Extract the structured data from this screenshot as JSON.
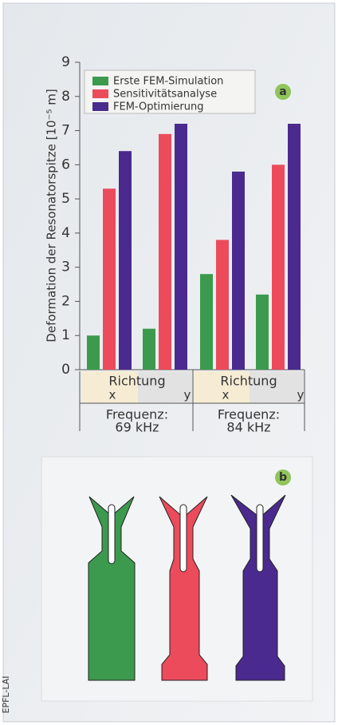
{
  "chart_data": {
    "type": "bar",
    "ylabel": "Deformation der Resonatorspitze [10⁻⁵ m]",
    "categories": [
      "x",
      "y",
      "x",
      "y"
    ],
    "groups": [
      {
        "direction": "Richtung",
        "frequency": [
          "Frequenz:",
          "69 kHz"
        ]
      },
      {
        "direction": "Richtung",
        "frequency": [
          "Frequenz:",
          "84 kHz"
        ]
      }
    ],
    "series": [
      {
        "name": "Erste FEM-Simulation",
        "color": "#3c9a4e",
        "values": [
          1.0,
          1.2,
          2.8,
          2.2
        ]
      },
      {
        "name": "Sensitivitätsanalyse",
        "color": "#ec4b5c",
        "values": [
          5.3,
          6.9,
          3.8,
          6.0
        ]
      },
      {
        "name": "FEM-Optimierung",
        "color": "#4a2a8e",
        "values": [
          6.4,
          7.2,
          5.8,
          7.2
        ]
      }
    ],
    "ylim": [
      0,
      9
    ],
    "yticks": [
      0,
      1,
      2,
      3,
      4,
      5,
      6,
      7,
      8,
      9
    ],
    "annotations": [
      "a",
      "b"
    ],
    "credit": "EPFL-LAI"
  }
}
